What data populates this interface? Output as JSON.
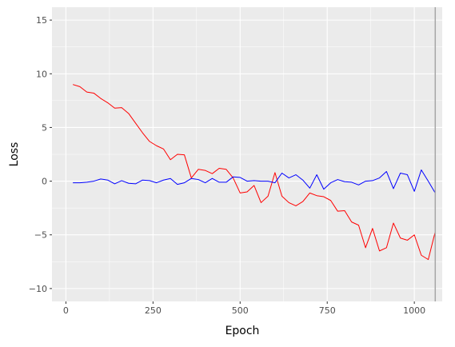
{
  "chart_data": {
    "type": "line",
    "title": "",
    "xlabel": "Epoch",
    "ylabel": "Loss",
    "xlim": [
      -40,
      1080
    ],
    "ylim": [
      -11.2,
      16.2
    ],
    "x_ticks": [
      0,
      250,
      500,
      750,
      1000
    ],
    "x_tick_labels": [
      "0",
      "250",
      "500",
      "750",
      "1000"
    ],
    "y_ticks": [
      -10,
      -5,
      0,
      5,
      10,
      15
    ],
    "y_tick_labels": [
      "−10",
      "−5",
      "0",
      "5",
      "10",
      "15"
    ],
    "grid": true,
    "legend": "none",
    "vline": {
      "x": 1060,
      "color": "#a6a6a6"
    },
    "series": [
      {
        "color": "#ff0000",
        "x": [
          20,
          40,
          60,
          80,
          100,
          120,
          140,
          160,
          180,
          200,
          220,
          240,
          260,
          280,
          300,
          320,
          340,
          360,
          380,
          400,
          420,
          440,
          460,
          480,
          500,
          520,
          540,
          560,
          580,
          600,
          620,
          640,
          660,
          680,
          700,
          720,
          740,
          760,
          780,
          800,
          820,
          840,
          860,
          880,
          900,
          920,
          940,
          960,
          980,
          1000,
          1020,
          1040,
          1060
        ],
        "y": [
          9.0,
          8.8,
          8.3,
          8.2,
          7.7,
          7.3,
          6.8,
          6.85,
          6.3,
          5.4,
          4.5,
          3.7,
          3.3,
          3.0,
          2.0,
          2.5,
          2.45,
          0.3,
          1.1,
          1.0,
          0.7,
          1.2,
          1.1,
          0.3,
          -1.1,
          -1.0,
          -0.4,
          -2.0,
          -1.4,
          0.8,
          -1.4,
          -2.0,
          -2.3,
          -1.9,
          -1.1,
          -1.35,
          -1.45,
          -1.8,
          -2.8,
          -2.75,
          -3.8,
          -4.1,
          -6.2,
          -4.4,
          -6.5,
          -6.2,
          -3.9,
          -5.3,
          -5.5,
          -5.0,
          -6.9,
          -7.3,
          -4.7
        ]
      },
      {
        "color": "#0000ff",
        "x": [
          20,
          40,
          60,
          80,
          100,
          120,
          140,
          160,
          180,
          200,
          220,
          240,
          260,
          280,
          300,
          320,
          340,
          360,
          380,
          400,
          420,
          440,
          460,
          480,
          500,
          520,
          540,
          560,
          580,
          600,
          620,
          640,
          660,
          680,
          700,
          720,
          740,
          760,
          780,
          800,
          820,
          840,
          860,
          880,
          900,
          920,
          940,
          960,
          980,
          1000,
          1020,
          1040,
          1060
        ],
        "y": [
          -0.15,
          -0.15,
          -0.1,
          0.0,
          0.2,
          0.1,
          -0.25,
          0.05,
          -0.2,
          -0.25,
          0.1,
          0.05,
          -0.15,
          0.1,
          0.25,
          -0.3,
          -0.15,
          0.25,
          0.15,
          -0.15,
          0.25,
          -0.1,
          -0.1,
          0.4,
          0.35,
          0.0,
          0.05,
          0.0,
          0.0,
          -0.15,
          0.75,
          0.3,
          0.6,
          0.1,
          -0.65,
          0.6,
          -0.75,
          -0.15,
          0.15,
          -0.05,
          -0.1,
          -0.35,
          0.0,
          0.05,
          0.3,
          0.9,
          -0.7,
          0.75,
          0.6,
          -0.95,
          1.05,
          0.0,
          -1.1
        ]
      }
    ]
  }
}
